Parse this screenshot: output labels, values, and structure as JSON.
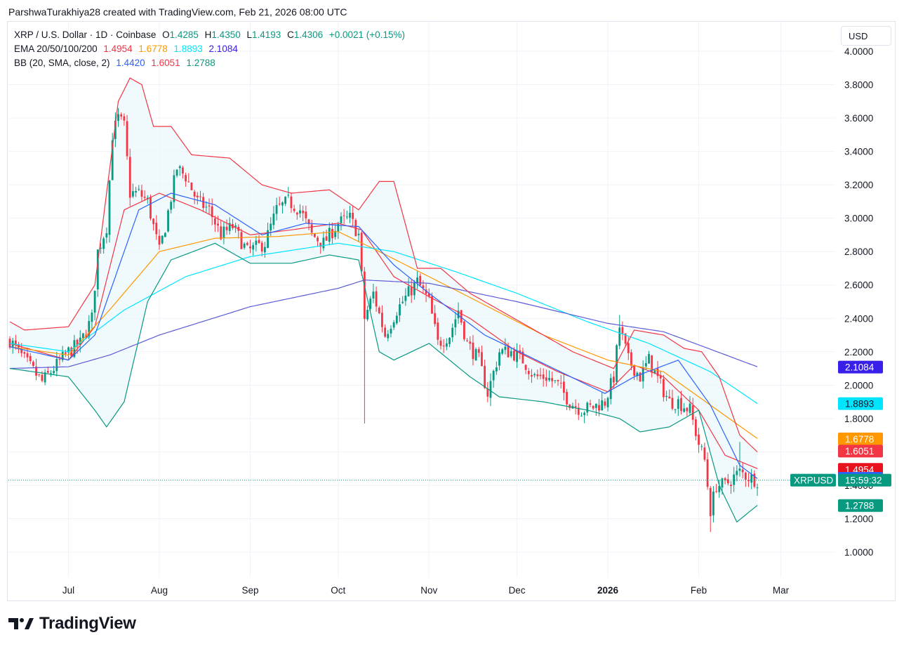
{
  "caption": "ParshwaTurakhiya28 created with TradingView.com, Feb 21, 2026 08:00 UTC",
  "legend": {
    "symbol_line": "XRP / U.S. Dollar · 1D · Coinbase",
    "open_label": "O",
    "open": "1.4285",
    "high_label": "H",
    "high": "1.4350",
    "low_label": "L",
    "low": "1.4193",
    "close_label": "C",
    "close": "1.4306",
    "change": "+0.0021 (+0.15%)",
    "ema_label": "EMA 20/50/100/200",
    "ema20": "1.4954",
    "ema50": "1.6778",
    "ema100": "1.8893",
    "ema200": "2.1084",
    "bb_label": "BB (20, SMA, close, 2)",
    "bb_basis": "1.4420",
    "bb_upper": "1.6051",
    "bb_lower": "1.2788"
  },
  "currency_button": "USD",
  "brand": "TradingView",
  "colors": {
    "up": "#089981",
    "down": "#f23645",
    "ema20": "#f23645",
    "ema50": "#ff9800",
    "ema100": "#00e5ff",
    "ema200": "#5b5bd6",
    "bb_basis": "#2962ff",
    "bb_band": "#f23645",
    "bb_lower": "#089981",
    "bb_fill": "#eaf6fb"
  },
  "chart_data": {
    "type": "candlestick",
    "title": "XRP / U.S. Dollar · 1D · Coinbase",
    "x_ticks": [
      "Jul",
      "Aug",
      "Sep",
      "Oct",
      "Nov",
      "Dec",
      "2026",
      "Feb",
      "Mar"
    ],
    "y_ticks": [
      "4.0000",
      "3.8000",
      "3.6000",
      "3.4000",
      "3.2000",
      "3.0000",
      "2.8000",
      "2.6000",
      "2.4000",
      "2.2000",
      "2.0000",
      "1.8000",
      "1.6000",
      "1.4000",
      "1.2000",
      "1.0000"
    ],
    "ylim": [
      0.85,
      4.05
    ],
    "grid": true,
    "last_price_label": "XRPUSD",
    "countdown": "15:59:32",
    "price_tags": [
      {
        "value": "2.1084",
        "series": "EMA 200",
        "color": "#3820e8"
      },
      {
        "value": "1.8893",
        "series": "EMA 100",
        "color": "#00e5ff"
      },
      {
        "value": "1.6778",
        "series": "EMA 50",
        "color": "#ff9800"
      },
      {
        "value": "1.6051",
        "series": "BB upper",
        "color": "#f23645"
      },
      {
        "value": "1.4954",
        "series": "EMA 20",
        "color": "#e8121f"
      },
      {
        "value": "1.4420",
        "series": "BB basis",
        "color": "#2962ff"
      },
      {
        "value": "1.2788",
        "series": "BB lower",
        "color": "#089981"
      }
    ],
    "candles_note": "daily OHLC approximated from chart",
    "close_path": [
      [
        "2025-06-11",
        2.27
      ],
      [
        "2025-06-16",
        2.15
      ],
      [
        "2025-06-22",
        2.02
      ],
      [
        "2025-06-26",
        2.1
      ],
      [
        "2025-07-01",
        2.2
      ],
      [
        "2025-07-05",
        2.25
      ],
      [
        "2025-07-09",
        2.4
      ],
      [
        "2025-07-11",
        2.8
      ],
      [
        "2025-07-14",
        2.95
      ],
      [
        "2025-07-16",
        3.5
      ],
      [
        "2025-07-18",
        3.6
      ],
      [
        "2025-07-20",
        3.55
      ],
      [
        "2025-07-22",
        3.15
      ],
      [
        "2025-07-25",
        3.15
      ],
      [
        "2025-07-28",
        3.1
      ],
      [
        "2025-08-01",
        2.8
      ],
      [
        "2025-08-03",
        2.95
      ],
      [
        "2025-08-07",
        3.3
      ],
      [
        "2025-08-10",
        3.25
      ],
      [
        "2025-08-14",
        3.1
      ],
      [
        "2025-08-18",
        3.05
      ],
      [
        "2025-08-22",
        2.9
      ],
      [
        "2025-08-26",
        2.95
      ],
      [
        "2025-08-31",
        2.8
      ],
      [
        "2025-09-06",
        2.85
      ],
      [
        "2025-09-10",
        3.05
      ],
      [
        "2025-09-14",
        3.1
      ],
      [
        "2025-09-18",
        3.05
      ],
      [
        "2025-09-22",
        2.9
      ],
      [
        "2025-09-26",
        2.85
      ],
      [
        "2025-10-01",
        2.97
      ],
      [
        "2025-10-05",
        3.0
      ],
      [
        "2025-10-08",
        2.9
      ],
      [
        "2025-10-10",
        2.4
      ],
      [
        "2025-10-13",
        2.55
      ],
      [
        "2025-10-17",
        2.3
      ],
      [
        "2025-10-21",
        2.45
      ],
      [
        "2025-10-25",
        2.55
      ],
      [
        "2025-10-28",
        2.62
      ],
      [
        "2025-11-01",
        2.5
      ],
      [
        "2025-11-04",
        2.25
      ],
      [
        "2025-11-08",
        2.3
      ],
      [
        "2025-11-11",
        2.45
      ],
      [
        "2025-11-14",
        2.25
      ],
      [
        "2025-11-18",
        2.15
      ],
      [
        "2025-11-21",
        1.95
      ],
      [
        "2025-11-25",
        2.2
      ],
      [
        "2025-11-29",
        2.2
      ],
      [
        "2025-12-03",
        2.15
      ],
      [
        "2025-12-07",
        2.05
      ],
      [
        "2025-12-11",
        2.05
      ],
      [
        "2025-12-15",
        2.0
      ],
      [
        "2025-12-19",
        1.9
      ],
      [
        "2025-12-23",
        1.85
      ],
      [
        "2025-12-27",
        1.87
      ],
      [
        "2025-12-31",
        1.9
      ],
      [
        "2026-01-03",
        2.05
      ],
      [
        "2026-01-05",
        2.35
      ],
      [
        "2026-01-08",
        2.15
      ],
      [
        "2026-01-12",
        2.05
      ],
      [
        "2026-01-15",
        2.15
      ],
      [
        "2026-01-19",
        2.0
      ],
      [
        "2026-01-22",
        1.9
      ],
      [
        "2026-01-25",
        1.9
      ],
      [
        "2026-01-29",
        1.85
      ],
      [
        "2026-02-01",
        1.65
      ],
      [
        "2026-02-03",
        1.55
      ],
      [
        "2026-02-05",
        1.25
      ],
      [
        "2026-02-07",
        1.4
      ],
      [
        "2026-02-10",
        1.4
      ],
      [
        "2026-02-13",
        1.45
      ],
      [
        "2026-02-15",
        1.48
      ],
      [
        "2026-02-18",
        1.45
      ],
      [
        "2026-02-21",
        1.43
      ]
    ],
    "series": [
      {
        "name": "EMA 20",
        "last": 1.4954,
        "points": [
          [
            "2025-06-11",
            2.25
          ],
          [
            "2025-07-01",
            2.15
          ],
          [
            "2025-07-10",
            2.35
          ],
          [
            "2025-07-20",
            3.05
          ],
          [
            "2025-08-01",
            3.15
          ],
          [
            "2025-08-15",
            3.05
          ],
          [
            "2025-09-01",
            2.9
          ],
          [
            "2025-09-15",
            2.93
          ],
          [
            "2025-10-01",
            2.97
          ],
          [
            "2025-10-09",
            2.93
          ],
          [
            "2025-10-20",
            2.65
          ],
          [
            "2025-11-01",
            2.53
          ],
          [
            "2025-11-15",
            2.4
          ],
          [
            "2025-12-01",
            2.2
          ],
          [
            "2025-12-15",
            2.08
          ],
          [
            "2026-01-01",
            1.96
          ],
          [
            "2026-01-10",
            2.12
          ],
          [
            "2026-01-20",
            2.05
          ],
          [
            "2026-02-01",
            1.85
          ],
          [
            "2026-02-10",
            1.58
          ],
          [
            "2026-02-21",
            1.5
          ]
        ]
      },
      {
        "name": "EMA 50",
        "last": 1.6778,
        "points": [
          [
            "2025-06-11",
            2.23
          ],
          [
            "2025-07-01",
            2.18
          ],
          [
            "2025-07-15",
            2.45
          ],
          [
            "2025-08-01",
            2.8
          ],
          [
            "2025-08-20",
            2.88
          ],
          [
            "2025-09-10",
            2.89
          ],
          [
            "2025-10-01",
            2.92
          ],
          [
            "2025-10-15",
            2.8
          ],
          [
            "2025-11-01",
            2.65
          ],
          [
            "2025-11-20",
            2.48
          ],
          [
            "2025-12-10",
            2.3
          ],
          [
            "2026-01-01",
            2.15
          ],
          [
            "2026-01-20",
            2.08
          ],
          [
            "2026-02-05",
            1.88
          ],
          [
            "2026-02-21",
            1.68
          ]
        ]
      },
      {
        "name": "EMA 100",
        "last": 1.8893,
        "points": [
          [
            "2025-06-11",
            2.25
          ],
          [
            "2025-07-01",
            2.2
          ],
          [
            "2025-07-20",
            2.45
          ],
          [
            "2025-08-10",
            2.65
          ],
          [
            "2025-09-01",
            2.77
          ],
          [
            "2025-10-01",
            2.85
          ],
          [
            "2025-10-20",
            2.8
          ],
          [
            "2025-11-10",
            2.68
          ],
          [
            "2025-12-01",
            2.55
          ],
          [
            "2025-12-25",
            2.38
          ],
          [
            "2026-01-15",
            2.25
          ],
          [
            "2026-02-05",
            2.08
          ],
          [
            "2026-02-21",
            1.89
          ]
        ]
      },
      {
        "name": "EMA 200",
        "last": 2.1084,
        "points": [
          [
            "2025-06-11",
            2.1
          ],
          [
            "2025-07-01",
            2.11
          ],
          [
            "2025-07-15",
            2.18
          ],
          [
            "2025-08-01",
            2.3
          ],
          [
            "2025-09-01",
            2.47
          ],
          [
            "2025-10-01",
            2.58
          ],
          [
            "2025-10-10",
            2.63
          ],
          [
            "2025-11-01",
            2.61
          ],
          [
            "2025-12-01",
            2.5
          ],
          [
            "2026-01-01",
            2.37
          ],
          [
            "2026-01-20",
            2.32
          ],
          [
            "2026-02-21",
            2.11
          ]
        ]
      },
      {
        "name": "BB basis",
        "last": 1.442,
        "points": [
          [
            "2025-06-11",
            2.23
          ],
          [
            "2025-07-01",
            2.15
          ],
          [
            "2025-07-10",
            2.3
          ],
          [
            "2025-07-25",
            3.05
          ],
          [
            "2025-08-05",
            3.15
          ],
          [
            "2025-08-20",
            3.08
          ],
          [
            "2025-09-05",
            2.9
          ],
          [
            "2025-09-20",
            2.97
          ],
          [
            "2025-10-08",
            2.95
          ],
          [
            "2025-10-20",
            2.72
          ],
          [
            "2025-11-01",
            2.55
          ],
          [
            "2025-11-20",
            2.3
          ],
          [
            "2025-12-10",
            2.13
          ],
          [
            "2025-12-31",
            1.95
          ],
          [
            "2026-01-10",
            2.05
          ],
          [
            "2026-01-25",
            2.15
          ],
          [
            "2026-02-05",
            1.88
          ],
          [
            "2026-02-15",
            1.52
          ],
          [
            "2026-02-21",
            1.44
          ]
        ]
      },
      {
        "name": "BB upper",
        "last": 1.6051,
        "points": [
          [
            "2025-06-11",
            2.38
          ],
          [
            "2025-06-16",
            2.33
          ],
          [
            "2025-07-01",
            2.35
          ],
          [
            "2025-07-10",
            2.6
          ],
          [
            "2025-07-18",
            3.7
          ],
          [
            "2025-07-22",
            3.84
          ],
          [
            "2025-07-26",
            3.8
          ],
          [
            "2025-07-30",
            3.55
          ],
          [
            "2025-08-05",
            3.55
          ],
          [
            "2025-08-12",
            3.38
          ],
          [
            "2025-08-25",
            3.36
          ],
          [
            "2025-09-05",
            3.2
          ],
          [
            "2025-09-15",
            3.15
          ],
          [
            "2025-09-28",
            3.17
          ],
          [
            "2025-10-08",
            3.05
          ],
          [
            "2025-10-15",
            3.22
          ],
          [
            "2025-10-20",
            3.22
          ],
          [
            "2025-10-28",
            2.7
          ],
          [
            "2025-11-05",
            2.7
          ],
          [
            "2025-11-15",
            2.55
          ],
          [
            "2025-11-25",
            2.45
          ],
          [
            "2025-12-05",
            2.35
          ],
          [
            "2025-12-20",
            2.2
          ],
          [
            "2026-01-03",
            2.1
          ],
          [
            "2026-01-10",
            2.33
          ],
          [
            "2026-01-20",
            2.3
          ],
          [
            "2026-01-27",
            2.22
          ],
          [
            "2026-02-02",
            2.2
          ],
          [
            "2026-02-08",
            2.05
          ],
          [
            "2026-02-15",
            1.7
          ],
          [
            "2026-02-21",
            1.6
          ]
        ]
      },
      {
        "name": "BB lower",
        "last": 1.2788,
        "points": [
          [
            "2025-06-11",
            2.1
          ],
          [
            "2025-07-01",
            2.05
          ],
          [
            "2025-07-10",
            1.85
          ],
          [
            "2025-07-14",
            1.75
          ],
          [
            "2025-07-20",
            1.9
          ],
          [
            "2025-07-28",
            2.5
          ],
          [
            "2025-08-05",
            2.75
          ],
          [
            "2025-08-20",
            2.85
          ],
          [
            "2025-09-01",
            2.73
          ],
          [
            "2025-09-15",
            2.73
          ],
          [
            "2025-09-28",
            2.78
          ],
          [
            "2025-10-08",
            2.75
          ],
          [
            "2025-10-15",
            2.2
          ],
          [
            "2025-10-20",
            2.15
          ],
          [
            "2025-11-01",
            2.25
          ],
          [
            "2025-11-15",
            2.05
          ],
          [
            "2025-11-25",
            1.93
          ],
          [
            "2025-12-10",
            1.9
          ],
          [
            "2025-12-25",
            1.85
          ],
          [
            "2026-01-05",
            1.8
          ],
          [
            "2026-01-12",
            1.72
          ],
          [
            "2026-01-22",
            1.75
          ],
          [
            "2026-02-01",
            1.85
          ],
          [
            "2026-02-08",
            1.4
          ],
          [
            "2026-02-14",
            1.18
          ],
          [
            "2026-02-21",
            1.28
          ]
        ]
      }
    ]
  }
}
